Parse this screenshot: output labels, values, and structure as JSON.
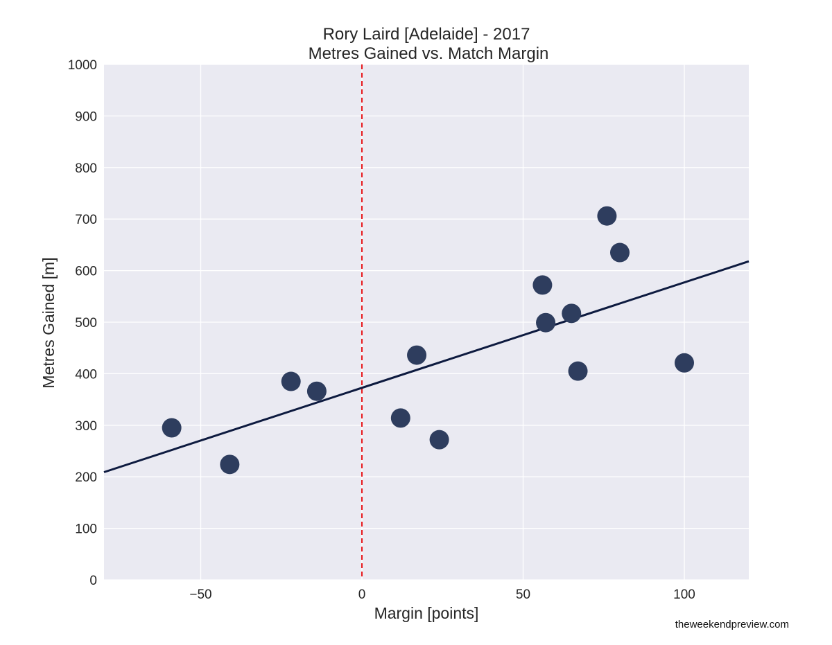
{
  "chart_data": {
    "type": "scatter",
    "title": "Rory Laird [Adelaide] - 2017",
    "subtitle": "Metres Gained vs. Match Margin",
    "xlabel": "Margin [points]",
    "ylabel": "Metres Gained [m]",
    "xlim": [
      -80,
      120
    ],
    "ylim": [
      0,
      1000
    ],
    "xticks": [
      -50,
      0,
      50,
      100
    ],
    "xtick_labels": [
      "−50",
      "0",
      "50",
      "100"
    ],
    "yticks": [
      0,
      100,
      200,
      300,
      400,
      500,
      600,
      700,
      800,
      900,
      1000
    ],
    "ytick_labels": [
      "0",
      "100",
      "200",
      "300",
      "400",
      "500",
      "600",
      "700",
      "800",
      "900",
      "1000"
    ],
    "grid": true,
    "points": [
      {
        "x": -59,
        "y": 295
      },
      {
        "x": -41,
        "y": 224
      },
      {
        "x": -22,
        "y": 385
      },
      {
        "x": -14,
        "y": 366
      },
      {
        "x": 12,
        "y": 314
      },
      {
        "x": 17,
        "y": 436
      },
      {
        "x": 24,
        "y": 272
      },
      {
        "x": 56,
        "y": 572
      },
      {
        "x": 57,
        "y": 499
      },
      {
        "x": 65,
        "y": 517
      },
      {
        "x": 67,
        "y": 405
      },
      {
        "x": 76,
        "y": 706
      },
      {
        "x": 80,
        "y": 635
      },
      {
        "x": 100,
        "y": 421
      }
    ],
    "trend_line": {
      "x": [
        -80,
        120
      ],
      "y": [
        209,
        618
      ]
    },
    "reference_line": {
      "x": 0,
      "style": "dashed"
    },
    "colors": {
      "point": "#2e3d5e",
      "trend": "#0d1a3f",
      "reference": "#e8191c",
      "plot_background": "#eaeaf2",
      "grid": "#ffffff"
    }
  },
  "watermark": "theweekendpreview.com"
}
